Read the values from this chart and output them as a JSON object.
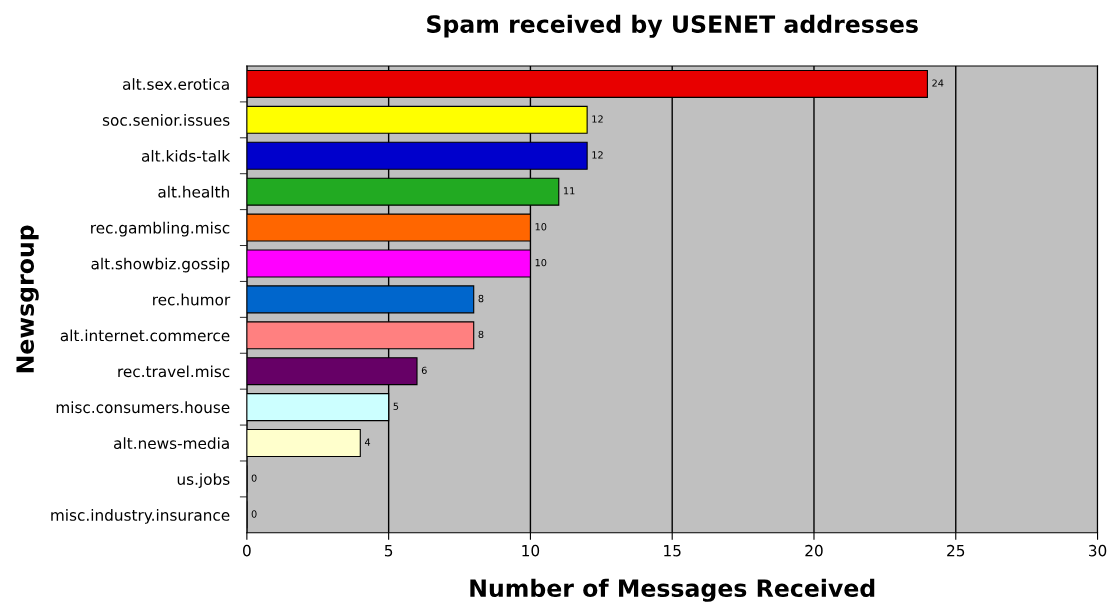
{
  "chart_data": {
    "type": "bar",
    "orientation": "horizontal",
    "title": "Spam received by USENET addresses",
    "xlabel": "Number of Messages Received",
    "ylabel": "Newsgroup",
    "categories": [
      "alt.sex.erotica",
      "soc.senior.issues",
      "alt.kids-talk",
      "alt.health",
      "rec.gambling.misc",
      "alt.showbiz.gossip",
      "rec.humor",
      "alt.internet.commerce",
      "rec.travel.misc",
      "misc.consumers.house",
      "alt.news-media",
      "us.jobs",
      "misc.industry.insurance"
    ],
    "values": [
      24,
      12,
      12,
      11,
      10,
      10,
      8,
      8,
      6,
      5,
      4,
      0,
      0
    ],
    "colors": [
      "#e80000",
      "#ffff00",
      "#0000cc",
      "#22aa22",
      "#ff6600",
      "#ff00ff",
      "#0066cc",
      "#ff8080",
      "#660066",
      "#ccffff",
      "#ffffcc",
      "#c0c0c0",
      "#c0c0c0"
    ],
    "xlim": [
      0,
      30
    ],
    "xticks": [
      0,
      5,
      10,
      15,
      20,
      25,
      30
    ],
    "grid": "x",
    "data_labels": true,
    "legend": false
  }
}
